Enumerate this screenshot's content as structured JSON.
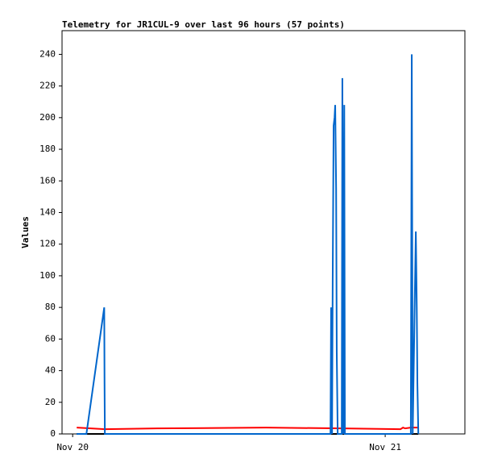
{
  "chart_data": {
    "type": "line",
    "title": "Telemetry for JR1CUL-9 over last 96 hours (57 points)",
    "y_label": "Values",
    "xlim": [
      -0.034,
      1.255
    ],
    "ylim": [
      0,
      255
    ],
    "xticks": [
      {
        "value": 0,
        "label": "Nov 20"
      },
      {
        "value": 1,
        "label": "Nov 21"
      }
    ],
    "yticks": [
      0,
      20,
      40,
      60,
      80,
      100,
      120,
      140,
      160,
      180,
      200,
      220,
      240
    ],
    "series": [
      {
        "color": "#000000",
        "x": [
          0.013,
          1.106
        ],
        "values": [
          0,
          0
        ]
      },
      {
        "color": "#ff0000",
        "x": [
          0.013,
          0.103,
          0.27,
          0.619,
          0.863,
          1.049,
          1.057,
          1.064,
          1.082,
          1.106
        ],
        "values": [
          4,
          3,
          3.5,
          4,
          3.5,
          3,
          4,
          3.5,
          4,
          4
        ]
      },
      {
        "color": "#0066cc",
        "x": [
          0.013,
          0.044,
          0.101,
          0.102,
          0.103,
          0.825,
          0.827,
          0.83,
          0.832,
          0.835,
          0.838,
          0.84,
          0.843,
          0.845,
          0.848,
          0.861,
          0.863,
          0.866,
          0.869,
          0.871,
          1.082,
          1.085,
          1.088,
          1.098,
          1.101,
          1.103,
          1.106
        ],
        "values": [
          0,
          0,
          80,
          32,
          0,
          0,
          80,
          0,
          96,
          195,
          200,
          208,
          155,
          52,
          0,
          0,
          225,
          0,
          208,
          0,
          0,
          240,
          0,
          128,
          80,
          32,
          0
        ]
      }
    ]
  }
}
